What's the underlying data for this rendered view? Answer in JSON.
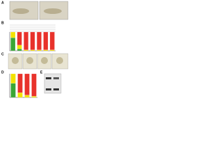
{
  "panels": {
    "a": "A",
    "b": "B",
    "c": "C",
    "d": "D",
    "e": "E"
  },
  "chart_data": [
    {
      "type": "bar",
      "stacked": true,
      "ylim": [
        0,
        100
      ],
      "series": [
        {
          "color": "#3aa635",
          "values": [
            70,
            10,
            0,
            0,
            0,
            0,
            0
          ]
        },
        {
          "color": "#f2e200",
          "values": [
            30,
            20,
            5,
            5,
            5,
            5,
            5
          ]
        },
        {
          "color": "#e8322b",
          "values": [
            0,
            70,
            95,
            95,
            95,
            95,
            95
          ]
        }
      ]
    },
    {
      "type": "bar",
      "stacked": true,
      "ylim": [
        0,
        100
      ],
      "series": [
        {
          "color": "#3aa635",
          "values": [
            60,
            0,
            0,
            0
          ]
        },
        {
          "color": "#f2e200",
          "values": [
            40,
            20,
            10,
            5
          ]
        },
        {
          "color": "#e8322b",
          "values": [
            0,
            80,
            90,
            95
          ]
        }
      ]
    }
  ]
}
